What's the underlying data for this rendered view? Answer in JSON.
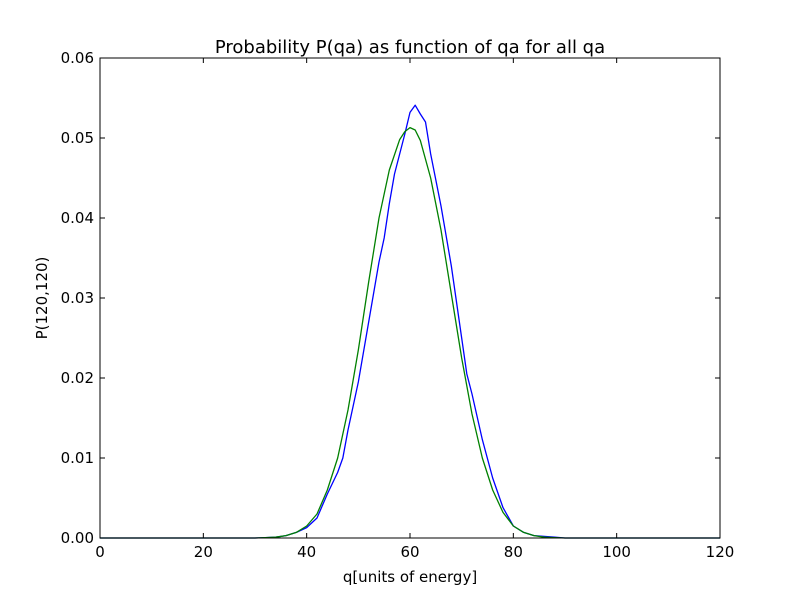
{
  "chart_data": {
    "type": "line",
    "title": "Probability P(qa) as function of qa for all qa",
    "xlabel": "q[units of energy]",
    "ylabel": "P(120,120)",
    "xlim": [
      0,
      120
    ],
    "ylim": [
      0,
      0.06
    ],
    "xticks": [
      0,
      20,
      40,
      60,
      80,
      100,
      120
    ],
    "xtick_labels": [
      "0",
      "20",
      "40",
      "60",
      "80",
      "100",
      "120"
    ],
    "yticks": [
      0,
      0.01,
      0.02,
      0.03,
      0.04,
      0.05,
      0.06
    ],
    "ytick_labels": [
      "0.00",
      "0.01",
      "0.02",
      "0.03",
      "0.04",
      "0.05",
      "0.06"
    ],
    "grid": false,
    "series": [
      {
        "color": "#0000ff",
        "x": [
          0,
          30,
          32,
          34,
          36,
          38,
          40,
          42,
          44,
          46,
          47,
          48,
          50,
          52,
          54,
          55,
          56,
          57,
          58,
          59,
          60,
          61,
          62,
          63,
          64,
          66,
          68,
          70,
          71,
          72,
          74,
          76,
          78,
          80,
          82,
          84,
          86,
          88,
          90,
          100,
          120
        ],
        "y": [
          0,
          0,
          5e-05,
          0.0001,
          0.0003,
          0.0007,
          0.0013,
          0.0025,
          0.0055,
          0.0082,
          0.01,
          0.0135,
          0.0195,
          0.027,
          0.0345,
          0.0375,
          0.0418,
          0.0455,
          0.048,
          0.0505,
          0.0532,
          0.0541,
          0.053,
          0.052,
          0.048,
          0.0415,
          0.034,
          0.025,
          0.0205,
          0.018,
          0.0123,
          0.0075,
          0.0038,
          0.0015,
          0.0007,
          0.0003,
          0.0002,
          0.0001,
          0,
          0,
          0
        ]
      },
      {
        "color": "#008000",
        "x": [
          0,
          30,
          32,
          34,
          36,
          38,
          40,
          42,
          44,
          46,
          48,
          50,
          52,
          54,
          56,
          58,
          59,
          60,
          61,
          62,
          64,
          66,
          68,
          70,
          72,
          74,
          76,
          78,
          80,
          82,
          84,
          86,
          88,
          90,
          100,
          120
        ],
        "y": [
          0,
          0,
          5e-05,
          0.0001,
          0.0003,
          0.0007,
          0.0015,
          0.003,
          0.006,
          0.01,
          0.016,
          0.0235,
          0.032,
          0.04,
          0.046,
          0.0498,
          0.0508,
          0.0513,
          0.051,
          0.0497,
          0.045,
          0.0385,
          0.0305,
          0.0225,
          0.0155,
          0.01,
          0.006,
          0.0032,
          0.0015,
          0.0007,
          0.0003,
          0.0001,
          5e-05,
          0,
          0,
          0
        ]
      }
    ]
  }
}
